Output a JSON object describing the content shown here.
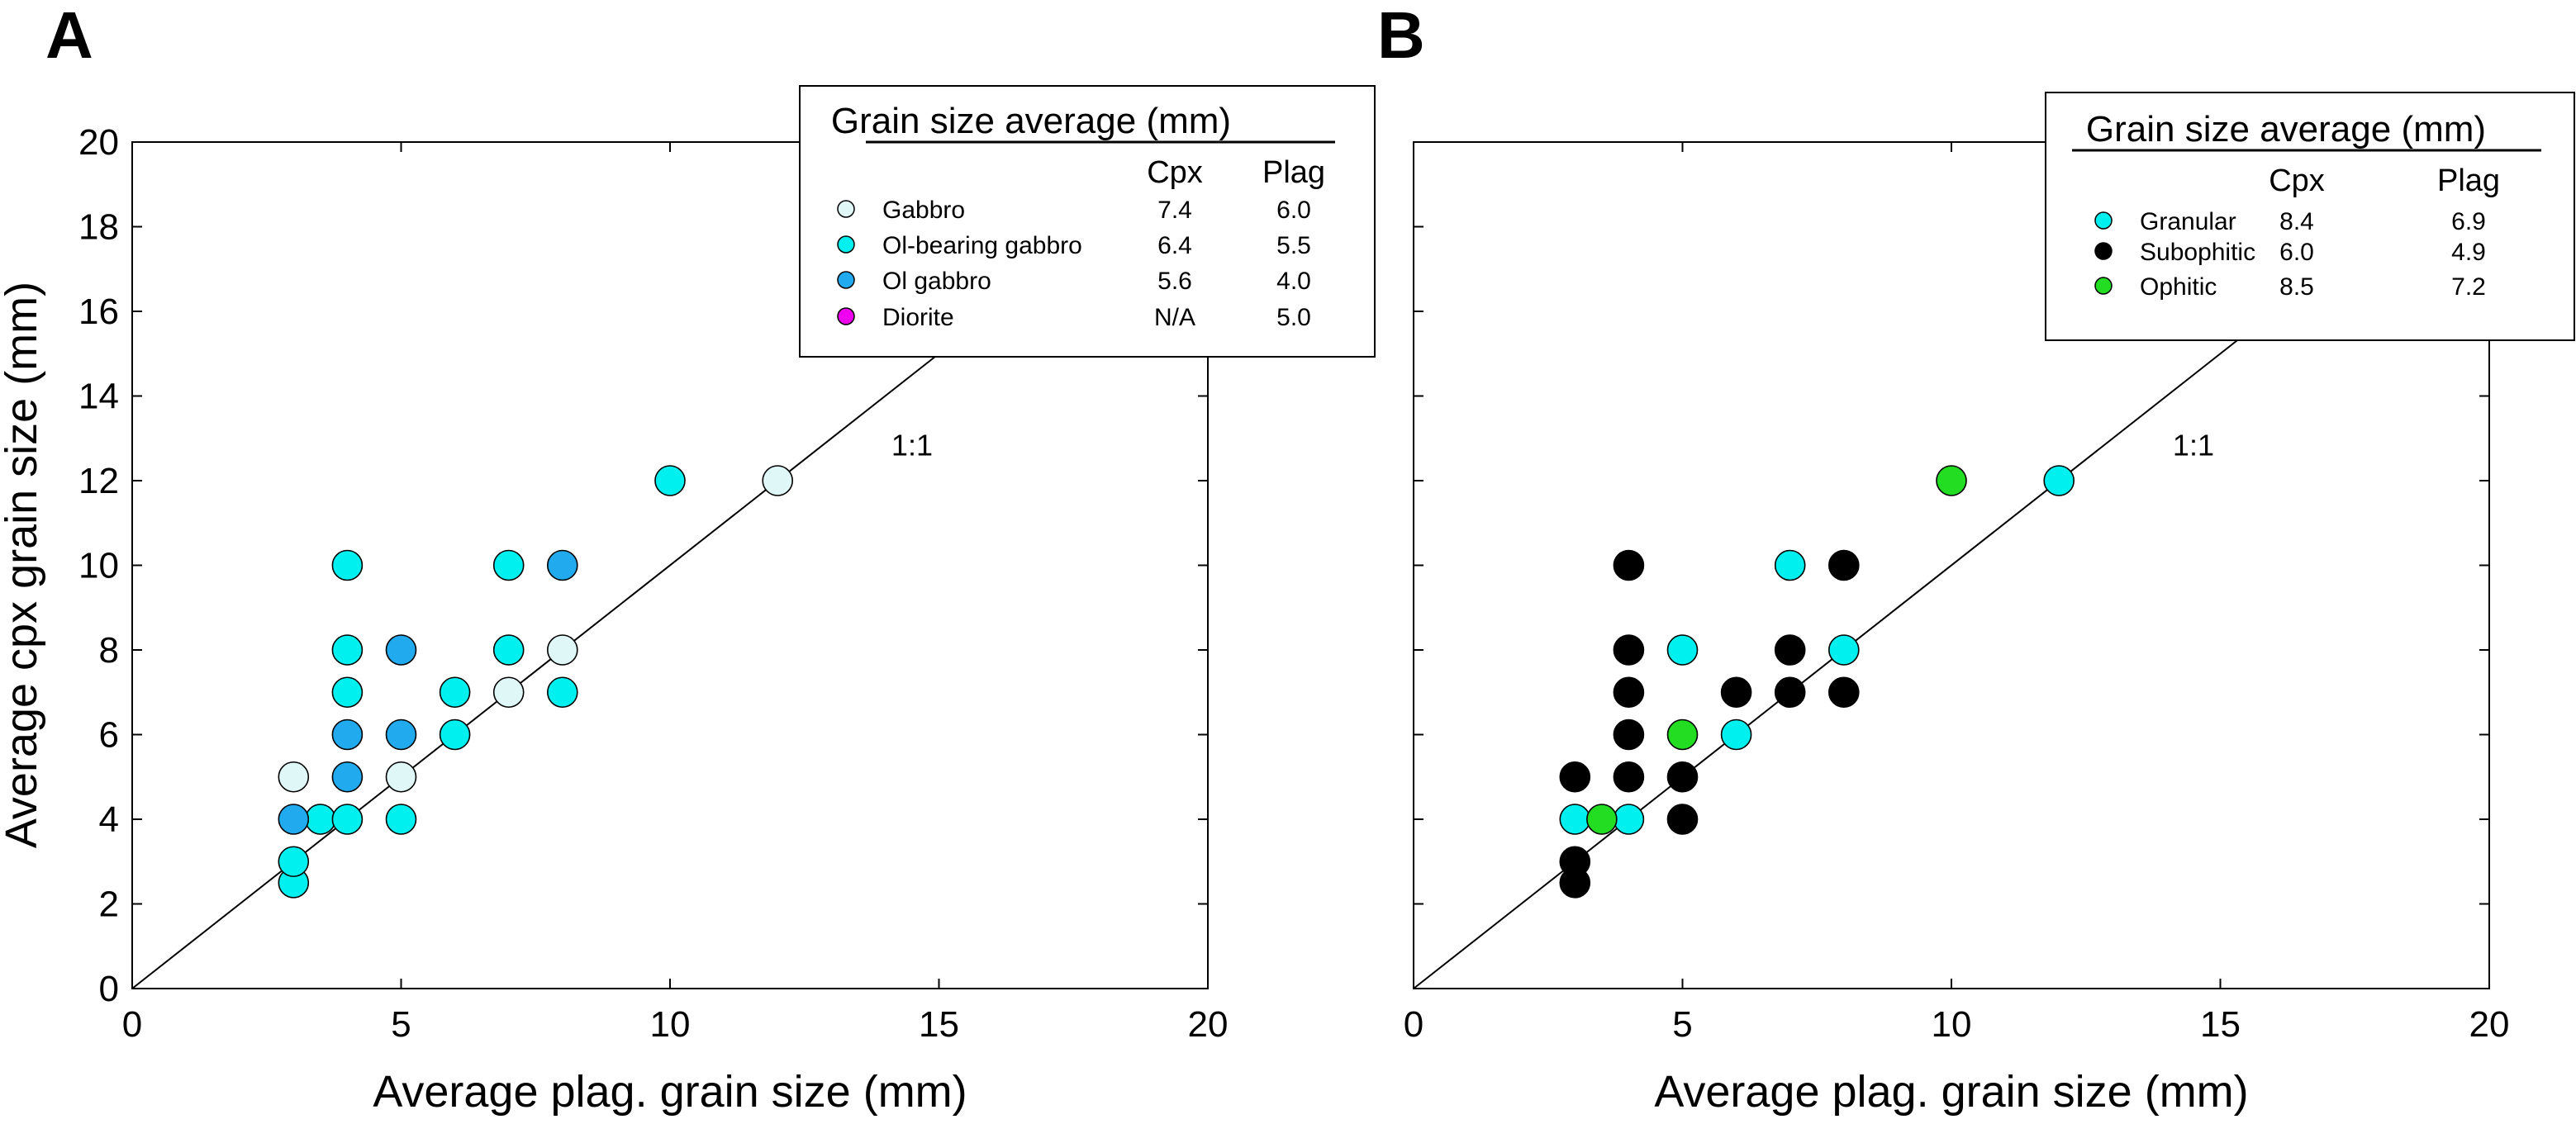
{
  "chart_data": [
    {
      "panel": "A",
      "type": "scatter",
      "xlabel": "Average plag. grain size (mm)",
      "ylabel": "Average cpx grain size (mm)",
      "xlim": [
        0,
        20
      ],
      "ylim": [
        0,
        20
      ],
      "xticks": [
        "0",
        "5",
        "10",
        "15",
        "20"
      ],
      "yticks": [
        "0",
        "2",
        "4",
        "6",
        "8",
        "10",
        "12",
        "14",
        "16",
        "18",
        "20"
      ],
      "annotation": "1:1",
      "reference_line": "1:1",
      "grid": false,
      "legend": {
        "title": "Grain size average (mm)",
        "columns": [
          "Cpx",
          "Plag"
        ],
        "placement": "top-right",
        "entries": [
          {
            "name": "Gabbro",
            "cpx": "7.4",
            "plag": "6.0",
            "color": "#e0f7f7"
          },
          {
            "name": "Ol-bearing gabbro",
            "cpx": "6.4",
            "plag": "5.5",
            "color": "#00f0f0"
          },
          {
            "name": "Ol gabbro",
            "cpx": "5.6",
            "plag": "4.0",
            "color": "#22aaee"
          },
          {
            "name": "Diorite",
            "cpx": "N/A",
            "plag": "5.0",
            "color": "#ee00ee"
          }
        ]
      },
      "series": [
        {
          "name": "Gabbro",
          "color": "#e0f7f7",
          "points": [
            [
              3,
              5
            ],
            [
              5,
              5
            ],
            [
              7,
              7
            ],
            [
              8,
              8
            ],
            [
              12,
              12
            ]
          ]
        },
        {
          "name": "Ol-bearing gabbro",
          "color": "#00f0f0",
          "points": [
            [
              3,
              2.5
            ],
            [
              3,
              3
            ],
            [
              3.5,
              4
            ],
            [
              4,
              4
            ],
            [
              4,
              7
            ],
            [
              4,
              8
            ],
            [
              4,
              10
            ],
            [
              5,
              4
            ],
            [
              6,
              6
            ],
            [
              6,
              7
            ],
            [
              7,
              8
            ],
            [
              7,
              10
            ],
            [
              8,
              7
            ],
            [
              10,
              12
            ]
          ]
        },
        {
          "name": "Ol gabbro",
          "color": "#22aaee",
          "points": [
            [
              3,
              4
            ],
            [
              4,
              5
            ],
            [
              4,
              6
            ],
            [
              5,
              6
            ],
            [
              5,
              8
            ],
            [
              8,
              10
            ]
          ]
        },
        {
          "name": "Diorite",
          "color": "#ee00ee",
          "points": []
        }
      ]
    },
    {
      "panel": "B",
      "type": "scatter",
      "xlabel": "Average plag. grain size (mm)",
      "ylabel": "",
      "xlim": [
        0,
        20
      ],
      "ylim": [
        0,
        20
      ],
      "xticks": [
        "0",
        "5",
        "10",
        "15",
        "20"
      ],
      "yticks": [],
      "annotation": "1:1",
      "reference_line": "1:1",
      "grid": false,
      "legend": {
        "title": "Grain size average (mm)",
        "columns": [
          "Cpx",
          "Plag"
        ],
        "placement": "top-right",
        "entries": [
          {
            "name": "Granular",
            "cpx": "8.4",
            "plag": "6.9",
            "color": "#00f0f0"
          },
          {
            "name": "Subophitic",
            "cpx": "6.0",
            "plag": "4.9",
            "color": "#000000"
          },
          {
            "name": "Ophitic",
            "cpx": "8.5",
            "plag": "7.2",
            "color": "#22dd22"
          }
        ]
      },
      "series": [
        {
          "name": "Granular",
          "color": "#00f0f0",
          "points": [
            [
              3,
              4
            ],
            [
              4,
              4
            ],
            [
              5,
              8
            ],
            [
              6,
              6
            ],
            [
              7,
              10
            ],
            [
              8,
              8
            ],
            [
              12,
              12
            ]
          ]
        },
        {
          "name": "Subophitic",
          "color": "#000000",
          "points": [
            [
              3,
              2.5
            ],
            [
              3,
              3
            ],
            [
              3,
              5
            ],
            [
              4,
              5
            ],
            [
              4,
              6
            ],
            [
              4,
              7
            ],
            [
              4,
              8
            ],
            [
              4,
              10
            ],
            [
              5,
              4
            ],
            [
              5,
              5
            ],
            [
              6,
              7
            ],
            [
              7,
              7
            ],
            [
              7,
              8
            ],
            [
              8,
              7
            ],
            [
              8,
              10
            ]
          ]
        },
        {
          "name": "Ophitic",
          "color": "#22dd22",
          "points": [
            [
              3.5,
              4
            ],
            [
              5,
              6
            ],
            [
              10,
              12
            ]
          ]
        }
      ]
    }
  ]
}
